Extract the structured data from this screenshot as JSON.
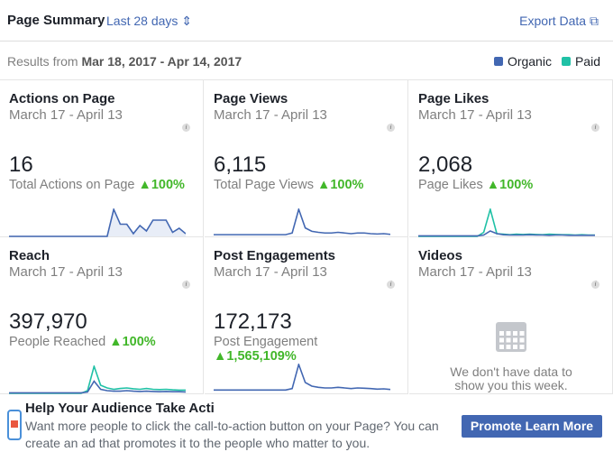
{
  "header": {
    "title": "Page Summary",
    "period": "Last 28 days",
    "export": "Export Data"
  },
  "results": {
    "prefix": "Results from",
    "range": "Mar 18, 2017 - Apr 14, 2017"
  },
  "legend": [
    {
      "name": "Organic",
      "color": "#4267b2"
    },
    {
      "name": "Paid",
      "color": "#20c1a6"
    }
  ],
  "cards": [
    {
      "title": "Actions on Page",
      "dates": "March 17 - April 13",
      "value": "16",
      "label": "Total Actions on Page",
      "change": "▲100%",
      "organic": [
        0,
        0,
        0,
        0,
        0,
        0,
        0,
        0,
        0,
        0,
        0,
        0,
        0,
        0,
        0,
        0,
        1,
        0.45,
        0.45,
        0.1,
        0.4,
        0.2,
        0.6,
        0.6,
        0.6,
        0.15,
        0.3,
        0.1
      ],
      "fill": true
    },
    {
      "title": "Page Views",
      "dates": "March 17 - April 13",
      "value": "6,115",
      "label": "Total Page Views",
      "change": "▲100%",
      "organic": [
        0.05,
        0.05,
        0.05,
        0.05,
        0.05,
        0.05,
        0.05,
        0.05,
        0.05,
        0.05,
        0.05,
        0.05,
        0.1,
        0.8,
        0.25,
        0.15,
        0.12,
        0.1,
        0.1,
        0.12,
        0.1,
        0.08,
        0.1,
        0.1,
        0.08,
        0.07,
        0.08,
        0.06
      ]
    },
    {
      "title": "Page Likes",
      "dates": "March 17 - April 13",
      "value": "2,068",
      "label": "Page Likes",
      "change": "▲100%",
      "organic": [
        0.02,
        0.02,
        0.02,
        0.02,
        0.02,
        0.02,
        0.02,
        0.02,
        0.02,
        0.02,
        0.05,
        0.2,
        0.1,
        0.06,
        0.05,
        0.05,
        0.05,
        0.06,
        0.05,
        0.05,
        0.04,
        0.05,
        0.05,
        0.04,
        0.04,
        0.04,
        0.04,
        0.04
      ],
      "paid": [
        0,
        0,
        0,
        0,
        0,
        0,
        0,
        0,
        0,
        0,
        0.15,
        1,
        0.1,
        0.08,
        0.06,
        0.08,
        0.07,
        0.08,
        0.07,
        0.06,
        0.08,
        0.07,
        0.06,
        0.06,
        0.05,
        0.06,
        0.05,
        0.05
      ]
    },
    {
      "title": "Reach",
      "dates": "March 17 - April 13",
      "value": "397,970",
      "label": "People Reached",
      "change": "▲100%",
      "organic": [
        0.02,
        0.02,
        0.02,
        0.02,
        0.02,
        0.02,
        0.02,
        0.02,
        0.02,
        0.02,
        0.02,
        0.02,
        0.05,
        0.45,
        0.15,
        0.1,
        0.08,
        0.08,
        0.1,
        0.08,
        0.07,
        0.08,
        0.07,
        0.06,
        0.07,
        0.06,
        0.06,
        0.05
      ],
      "paid": [
        0,
        0,
        0,
        0,
        0,
        0,
        0,
        0,
        0,
        0,
        0,
        0,
        0.1,
        1,
        0.3,
        0.2,
        0.15,
        0.18,
        0.2,
        0.17,
        0.15,
        0.18,
        0.15,
        0.14,
        0.15,
        0.13,
        0.12,
        0.12
      ]
    },
    {
      "title": "Post Engagements",
      "dates": "March 17 - April 13",
      "value": "172,173",
      "label": "Post Engagement",
      "change": "▲1,565,109%",
      "organic": [
        0.05,
        0.05,
        0.05,
        0.05,
        0.05,
        0.05,
        0.05,
        0.05,
        0.05,
        0.05,
        0.05,
        0.05,
        0.1,
        0.9,
        0.3,
        0.18,
        0.14,
        0.12,
        0.12,
        0.14,
        0.12,
        0.1,
        0.12,
        0.11,
        0.1,
        0.08,
        0.09,
        0.07
      ]
    },
    {
      "title": "Videos",
      "dates": "March 17 - April 13",
      "empty": "We don't have data to show you this week."
    }
  ],
  "banner": {
    "title": "Help Your Audience Take Acti",
    "text": "Want more people to click the call-to-action button on your Page? You can create an ad that promotes it to the people who matter to you.",
    "button": "Promote Learn More"
  }
}
